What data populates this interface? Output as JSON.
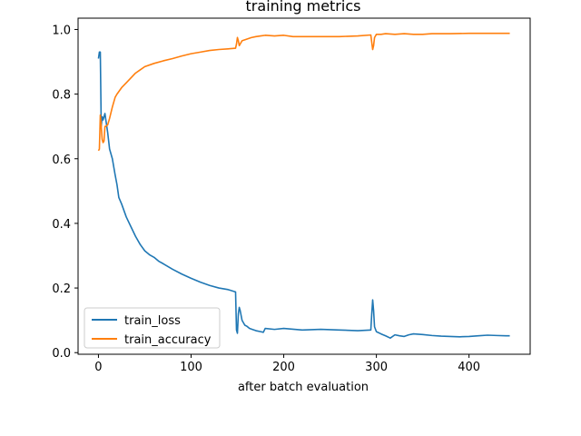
{
  "chart_data": {
    "type": "line",
    "title": "training metrics",
    "xlabel": "after batch evaluation",
    "ylabel": "",
    "xlim": [
      -22,
      466
    ],
    "ylim": [
      -0.005,
      1.035
    ],
    "xticks": [
      0,
      100,
      200,
      300,
      400
    ],
    "yticks": [
      0.0,
      0.2,
      0.4,
      0.6,
      0.8,
      1.0
    ],
    "ytick_labels": [
      "0.0",
      "0.2",
      "0.4",
      "0.6",
      "0.8",
      "1.0"
    ],
    "grid": false,
    "legend_position": "lower-left",
    "series": [
      {
        "name": "train_loss",
        "color": "#1f77b4",
        "x": [
          0,
          1,
          2,
          3,
          4,
          5,
          6,
          7,
          8,
          10,
          12,
          15,
          18,
          20,
          22,
          25,
          30,
          35,
          40,
          45,
          50,
          55,
          60,
          65,
          70,
          80,
          90,
          100,
          110,
          120,
          130,
          140,
          148,
          149,
          150,
          151,
          152,
          153,
          155,
          158,
          160,
          163,
          166,
          170,
          175,
          178,
          180,
          190,
          200,
          220,
          240,
          260,
          280,
          294,
          295,
          296,
          297,
          298,
          300,
          305,
          310,
          315,
          320,
          325,
          330,
          335,
          340,
          350,
          360,
          370,
          380,
          390,
          400,
          410,
          420,
          430,
          440,
          444
        ],
        "y": [
          0.91,
          0.93,
          0.93,
          0.7,
          0.73,
          0.72,
          0.73,
          0.74,
          0.72,
          0.68,
          0.63,
          0.6,
          0.55,
          0.52,
          0.48,
          0.46,
          0.42,
          0.39,
          0.36,
          0.335,
          0.315,
          0.303,
          0.295,
          0.283,
          0.275,
          0.258,
          0.243,
          0.23,
          0.218,
          0.208,
          0.2,
          0.195,
          0.188,
          0.07,
          0.06,
          0.12,
          0.14,
          0.13,
          0.1,
          0.085,
          0.082,
          0.075,
          0.072,
          0.068,
          0.065,
          0.063,
          0.075,
          0.072,
          0.075,
          0.07,
          0.072,
          0.07,
          0.068,
          0.07,
          0.12,
          0.163,
          0.13,
          0.08,
          0.065,
          0.058,
          0.052,
          0.045,
          0.055,
          0.052,
          0.05,
          0.055,
          0.058,
          0.056,
          0.053,
          0.051,
          0.05,
          0.049,
          0.05,
          0.052,
          0.054,
          0.053,
          0.052,
          0.052
        ]
      },
      {
        "name": "train_accuracy",
        "color": "#ff7f0e",
        "x": [
          0,
          1,
          2,
          3,
          4,
          5,
          6,
          7,
          8,
          10,
          12,
          15,
          18,
          20,
          25,
          30,
          35,
          40,
          45,
          50,
          60,
          70,
          80,
          90,
          100,
          110,
          120,
          130,
          140,
          148,
          149,
          150,
          151,
          152,
          155,
          160,
          165,
          170,
          175,
          180,
          190,
          200,
          210,
          220,
          240,
          260,
          280,
          294,
          295,
          296,
          297,
          298,
          300,
          305,
          310,
          320,
          330,
          340,
          350,
          360,
          380,
          400,
          420,
          440,
          444
        ],
        "y": [
          0.625,
          0.63,
          0.735,
          0.7,
          0.66,
          0.65,
          0.655,
          0.7,
          0.7,
          0.705,
          0.725,
          0.76,
          0.79,
          0.8,
          0.82,
          0.835,
          0.85,
          0.865,
          0.875,
          0.885,
          0.895,
          0.903,
          0.91,
          0.918,
          0.925,
          0.93,
          0.935,
          0.938,
          0.94,
          0.942,
          0.955,
          0.975,
          0.965,
          0.95,
          0.965,
          0.97,
          0.975,
          0.978,
          0.98,
          0.982,
          0.98,
          0.982,
          0.978,
          0.978,
          0.978,
          0.978,
          0.98,
          0.983,
          0.96,
          0.938,
          0.95,
          0.975,
          0.985,
          0.985,
          0.987,
          0.985,
          0.987,
          0.985,
          0.985,
          0.987,
          0.987,
          0.988,
          0.988,
          0.988,
          0.988
        ]
      }
    ]
  }
}
